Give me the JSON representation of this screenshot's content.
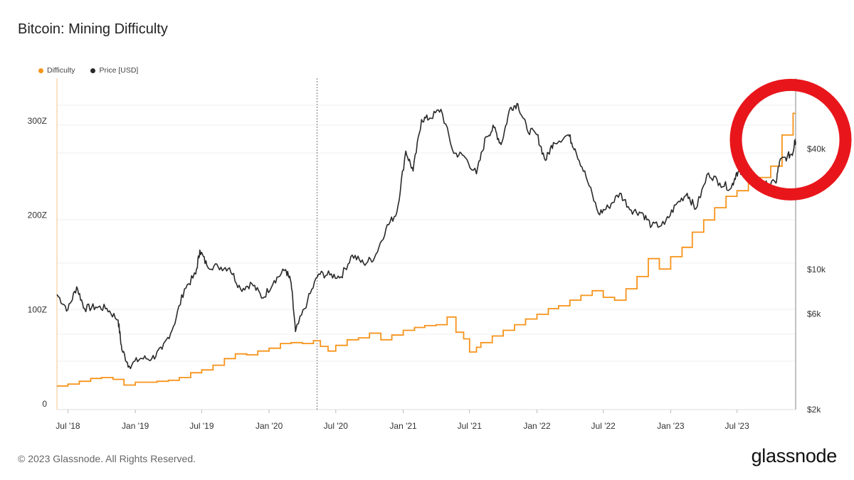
{
  "header": {
    "title": "Bitcoin: Mining Difficulty"
  },
  "footer": {
    "copyright": "© 2023 Glassnode. All Rights Reserved.",
    "logo": "glassnode"
  },
  "colors": {
    "difficulty": "#f7931a",
    "price": "#2a2a2a",
    "highlight": "#e8161b"
  },
  "chart_data": {
    "type": "line",
    "title": "Bitcoin: Mining Difficulty",
    "legend": [
      "Difficulty",
      "Price [USD]"
    ],
    "legend_placement": "top-left",
    "x_range": [
      "2018-06-01",
      "2023-12-08"
    ],
    "x_ticks": [
      {
        "date": "2018-07-01",
        "label": "Jul '18"
      },
      {
        "date": "2019-01-01",
        "label": "Jan '19"
      },
      {
        "date": "2019-07-01",
        "label": "Jul '19"
      },
      {
        "date": "2020-01-01",
        "label": "Jan '20"
      },
      {
        "date": "2020-07-01",
        "label": "Jul '20"
      },
      {
        "date": "2021-01-01",
        "label": "Jan '21"
      },
      {
        "date": "2021-07-01",
        "label": "Jul '21"
      },
      {
        "date": "2022-01-01",
        "label": "Jan '22"
      },
      {
        "date": "2022-07-01",
        "label": "Jul '22"
      },
      {
        "date": "2023-01-01",
        "label": "Jan '23"
      },
      {
        "date": "2023-07-01",
        "label": "Jul '23"
      }
    ],
    "y_left": {
      "label": "Difficulty",
      "range": [
        0,
        340
      ],
      "ticks": [
        {
          "value": 0,
          "label": "0"
        },
        {
          "value": 100,
          "label": "100Z"
        },
        {
          "value": 200,
          "label": "200Z"
        },
        {
          "value": 300,
          "label": "300Z"
        }
      ]
    },
    "y_right": {
      "label": "Price [USD]",
      "scale": "log",
      "range": [
        2000,
        90000
      ],
      "ticks": [
        {
          "value": 2000,
          "label": "$2k"
        },
        {
          "value": 6000,
          "label": "$6k"
        },
        {
          "value": 10000,
          "label": "$10k"
        },
        {
          "value": 40000,
          "label": "$40k"
        }
      ]
    },
    "annotations": {
      "halving_line_date": "2020-05-11",
      "highlight_circle_center": [
        "2023-11-05",
        43000
      ]
    },
    "series": [
      {
        "name": "Difficulty",
        "axis": "left",
        "style": "step",
        "points": [
          [
            "2018-06-01",
            19
          ],
          [
            "2018-07-01",
            21
          ],
          [
            "2018-08-01",
            24
          ],
          [
            "2018-09-01",
            27
          ],
          [
            "2018-10-01",
            28
          ],
          [
            "2018-11-01",
            26
          ],
          [
            "2018-12-01",
            20
          ],
          [
            "2019-01-01",
            23
          ],
          [
            "2019-02-01",
            23
          ],
          [
            "2019-03-01",
            24
          ],
          [
            "2019-04-01",
            25
          ],
          [
            "2019-05-01",
            28
          ],
          [
            "2019-06-01",
            33
          ],
          [
            "2019-07-01",
            36
          ],
          [
            "2019-08-01",
            41
          ],
          [
            "2019-09-01",
            48
          ],
          [
            "2019-10-01",
            53
          ],
          [
            "2019-11-01",
            52
          ],
          [
            "2019-12-01",
            56
          ],
          [
            "2020-01-01",
            59
          ],
          [
            "2020-02-01",
            64
          ],
          [
            "2020-03-01",
            65
          ],
          [
            "2020-04-01",
            64
          ],
          [
            "2020-05-01",
            67
          ],
          [
            "2020-05-20",
            61
          ],
          [
            "2020-06-10",
            56
          ],
          [
            "2020-07-01",
            62
          ],
          [
            "2020-08-01",
            68
          ],
          [
            "2020-09-01",
            70
          ],
          [
            "2020-10-01",
            75
          ],
          [
            "2020-11-01",
            68
          ],
          [
            "2020-12-01",
            73
          ],
          [
            "2021-01-01",
            78
          ],
          [
            "2021-02-01",
            81
          ],
          [
            "2021-03-01",
            83
          ],
          [
            "2021-04-01",
            84
          ],
          [
            "2021-05-01",
            92
          ],
          [
            "2021-05-25",
            76
          ],
          [
            "2021-06-15",
            69
          ],
          [
            "2021-07-01",
            55
          ],
          [
            "2021-07-20",
            60
          ],
          [
            "2021-08-01",
            65
          ],
          [
            "2021-09-01",
            72
          ],
          [
            "2021-10-01",
            78
          ],
          [
            "2021-11-01",
            84
          ],
          [
            "2021-12-01",
            90
          ],
          [
            "2022-01-01",
            95
          ],
          [
            "2022-02-01",
            101
          ],
          [
            "2022-03-01",
            104
          ],
          [
            "2022-04-01",
            110
          ],
          [
            "2022-05-01",
            115
          ],
          [
            "2022-06-01",
            120
          ],
          [
            "2022-07-01",
            113
          ],
          [
            "2022-08-01",
            110
          ],
          [
            "2022-09-01",
            122
          ],
          [
            "2022-10-01",
            135
          ],
          [
            "2022-11-01",
            154
          ],
          [
            "2022-12-01",
            143
          ],
          [
            "2023-01-01",
            156
          ],
          [
            "2023-02-01",
            166
          ],
          [
            "2023-03-01",
            182
          ],
          [
            "2023-04-01",
            195
          ],
          [
            "2023-05-01",
            208
          ],
          [
            "2023-06-01",
            220
          ],
          [
            "2023-07-01",
            226
          ],
          [
            "2023-08-01",
            234
          ],
          [
            "2023-09-01",
            240
          ],
          [
            "2023-10-01",
            252
          ],
          [
            "2023-11-01",
            285
          ],
          [
            "2023-12-01",
            308
          ]
        ]
      },
      {
        "name": "Price [USD]",
        "axis": "right",
        "style": "line",
        "points": [
          [
            "2018-06-01",
            7500
          ],
          [
            "2018-07-01",
            6300
          ],
          [
            "2018-07-25",
            8200
          ],
          [
            "2018-08-15",
            6400
          ],
          [
            "2018-09-15",
            6500
          ],
          [
            "2018-10-15",
            6400
          ],
          [
            "2018-11-15",
            5600
          ],
          [
            "2018-11-25",
            4000
          ],
          [
            "2018-12-15",
            3300
          ],
          [
            "2019-01-15",
            3600
          ],
          [
            "2019-02-15",
            3600
          ],
          [
            "2019-03-15",
            4000
          ],
          [
            "2019-04-15",
            5200
          ],
          [
            "2019-05-15",
            8000
          ],
          [
            "2019-06-15",
            9500
          ],
          [
            "2019-06-26",
            12500
          ],
          [
            "2019-07-15",
            10500
          ],
          [
            "2019-08-15",
            10300
          ],
          [
            "2019-09-15",
            10200
          ],
          [
            "2019-10-15",
            8000
          ],
          [
            "2019-11-15",
            8500
          ],
          [
            "2019-12-15",
            7200
          ],
          [
            "2020-01-15",
            8800
          ],
          [
            "2020-02-15",
            10000
          ],
          [
            "2020-03-01",
            8600
          ],
          [
            "2020-03-13",
            4900
          ],
          [
            "2020-04-15",
            7000
          ],
          [
            "2020-05-15",
            9500
          ],
          [
            "2020-06-15",
            9400
          ],
          [
            "2020-07-15",
            9200
          ],
          [
            "2020-08-15",
            11800
          ],
          [
            "2020-09-15",
            10700
          ],
          [
            "2020-10-15",
            11500
          ],
          [
            "2020-11-15",
            16000
          ],
          [
            "2020-12-15",
            19400
          ],
          [
            "2021-01-08",
            39000
          ],
          [
            "2021-01-28",
            31000
          ],
          [
            "2021-02-20",
            56000
          ],
          [
            "2021-03-15",
            57000
          ],
          [
            "2021-04-14",
            63000
          ],
          [
            "2021-05-19",
            38000
          ],
          [
            "2021-06-15",
            37000
          ],
          [
            "2021-07-20",
            30000
          ],
          [
            "2021-08-15",
            46000
          ],
          [
            "2021-09-06",
            51000
          ],
          [
            "2021-09-25",
            42000
          ],
          [
            "2021-10-20",
            64000
          ],
          [
            "2021-11-10",
            67000
          ],
          [
            "2021-12-05",
            50000
          ],
          [
            "2022-01-01",
            47000
          ],
          [
            "2022-01-24",
            35000
          ],
          [
            "2022-02-15",
            43000
          ],
          [
            "2022-03-28",
            47000
          ],
          [
            "2022-04-15",
            40000
          ],
          [
            "2022-05-15",
            29000
          ],
          [
            "2022-06-18",
            19000
          ],
          [
            "2022-07-15",
            20500
          ],
          [
            "2022-08-15",
            24000
          ],
          [
            "2022-09-15",
            19800
          ],
          [
            "2022-10-15",
            19200
          ],
          [
            "2022-11-10",
            16500
          ],
          [
            "2022-12-15",
            16800
          ],
          [
            "2023-01-15",
            21000
          ],
          [
            "2023-02-15",
            24000
          ],
          [
            "2023-03-10",
            20000
          ],
          [
            "2023-04-14",
            30300
          ],
          [
            "2023-05-15",
            27000
          ],
          [
            "2023-06-15",
            25500
          ],
          [
            "2023-06-30",
            30500
          ],
          [
            "2023-07-15",
            30200
          ],
          [
            "2023-08-15",
            29000
          ],
          [
            "2023-08-25",
            26000
          ],
          [
            "2023-09-15",
            26500
          ],
          [
            "2023-10-15",
            27000
          ],
          [
            "2023-10-25",
            34500
          ],
          [
            "2023-11-15",
            36500
          ],
          [
            "2023-12-01",
            38500
          ],
          [
            "2023-12-05",
            44000
          ],
          [
            "2023-12-08",
            43500
          ]
        ]
      }
    ]
  }
}
